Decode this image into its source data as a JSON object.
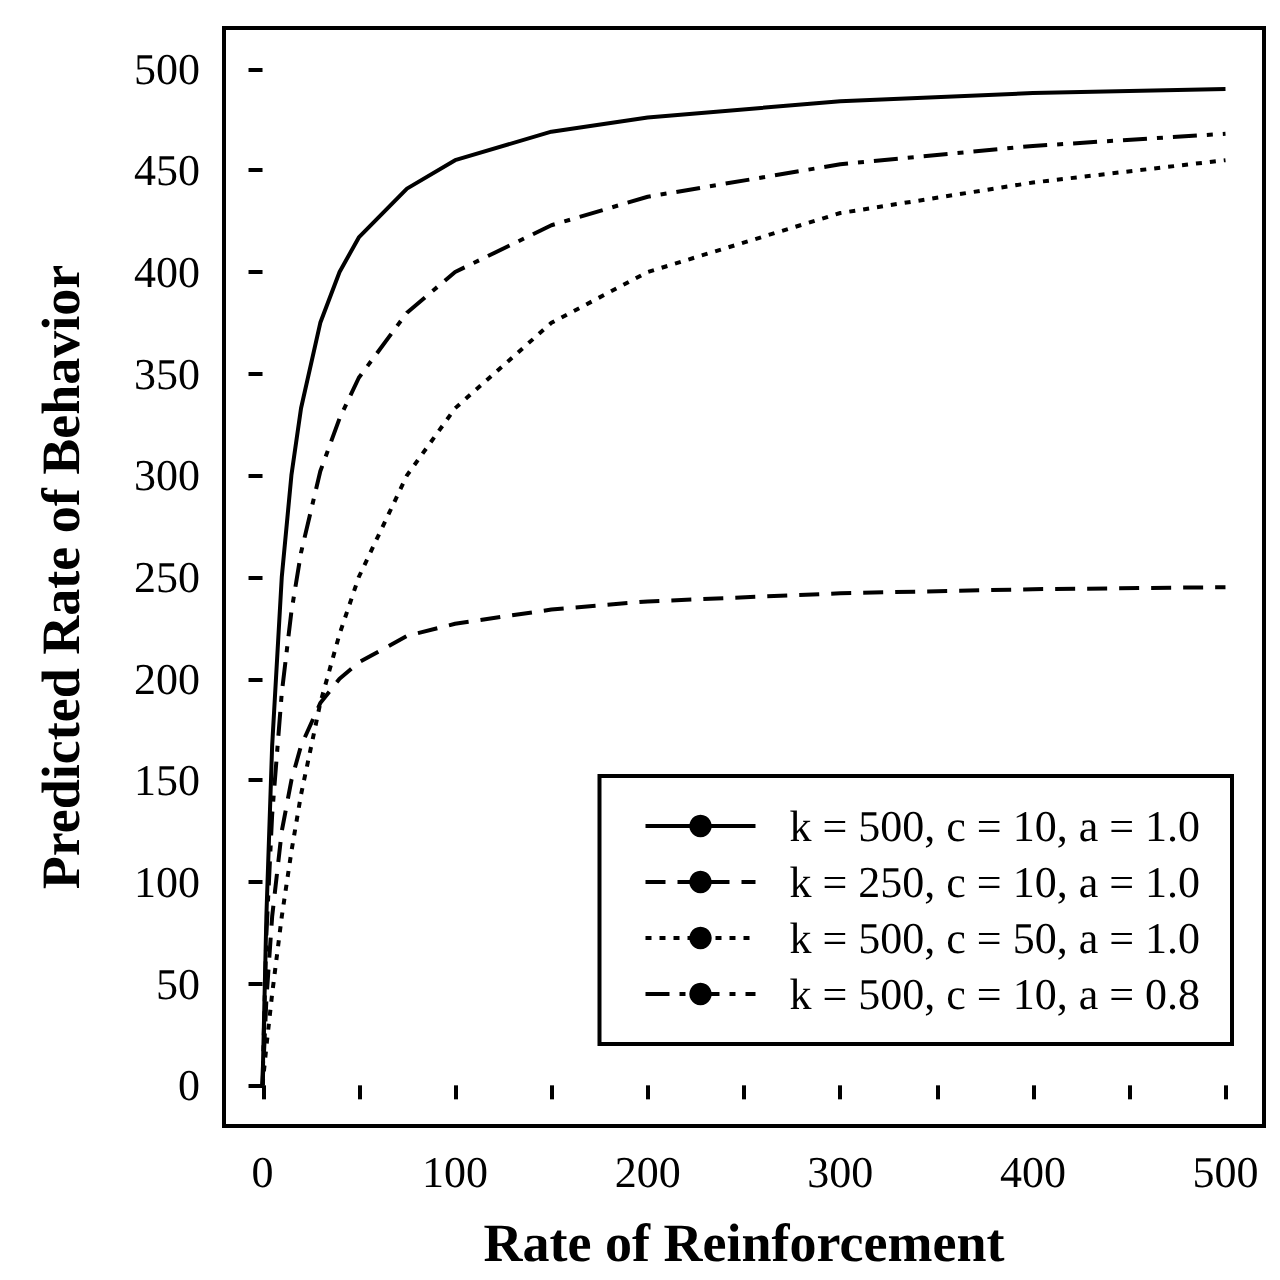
{
  "chart_data": {
    "type": "line",
    "xlabel": "Rate of Reinforcement",
    "ylabel": "Predicted Rate of Behavior",
    "x": [
      0,
      2,
      5,
      10,
      15,
      20,
      30,
      40,
      50,
      75,
      100,
      150,
      200,
      300,
      400,
      500
    ],
    "series": [
      {
        "name": "k = 500, c = 10, a = 1.0",
        "color": "#000000",
        "line_style": "solid",
        "values": [
          0,
          83,
          167,
          250,
          300,
          333,
          375,
          400,
          417,
          441,
          455,
          469,
          476,
          484,
          488,
          490
        ]
      },
      {
        "name": "k = 250, c = 10, a = 1.0",
        "color": "#000000",
        "line_style": "dashed",
        "values": [
          0,
          42,
          83,
          125,
          150,
          167,
          188,
          200,
          208,
          221,
          227,
          234,
          238,
          242,
          244,
          245
        ]
      },
      {
        "name": "k = 500, c = 50, a = 1.0",
        "color": "#000000",
        "line_style": "dotted",
        "values": [
          0,
          19,
          45,
          83,
          115,
          143,
          188,
          222,
          250,
          300,
          333,
          375,
          400,
          429,
          444,
          455
        ]
      },
      {
        "name": "k = 500, c = 10, a = 0.8",
        "color": "#000000",
        "line_style": "dashdot",
        "values": [
          0,
          74,
          133,
          193,
          233,
          262,
          302,
          328,
          348,
          380,
          400,
          423,
          437,
          453,
          462,
          468
        ]
      }
    ],
    "xlim": [
      -20,
      520
    ],
    "xticks": [
      0,
      {
        "value": 50,
        "label": null
      },
      100,
      {
        "value": 150,
        "label": null
      },
      200,
      {
        "value": 250,
        "label": null
      },
      300,
      {
        "value": 350,
        "label": null
      },
      400,
      {
        "value": 450,
        "label": null
      },
      500
    ],
    "ylim": [
      -20,
      520
    ],
    "yticks": [
      0,
      50,
      100,
      150,
      200,
      250,
      300,
      350,
      400,
      450,
      500
    ],
    "grid": false,
    "legend": "bottom right",
    "marker": "none"
  }
}
